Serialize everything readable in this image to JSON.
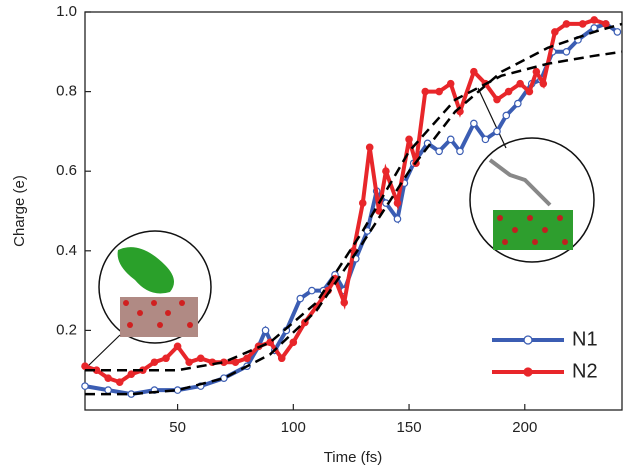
{
  "chart_data": {
    "type": "line",
    "xlabel": "Time (fs)",
    "ylabel": "Charge (e)",
    "xlim": [
      10,
      242
    ],
    "ylim": [
      0,
      1
    ],
    "xticks": [
      50,
      100,
      150,
      200
    ],
    "yticks": [
      0.2,
      0.4,
      0.6,
      0.8,
      {
        "value": 1,
        "label": "1.0"
      }
    ],
    "legend": "lower right",
    "series": [
      {
        "name": "N1",
        "color": "#3b5db3",
        "marker": "open",
        "x": [
          10,
          20,
          30,
          40,
          50,
          60,
          70,
          80,
          85,
          88,
          92,
          97,
          103,
          108,
          113,
          118,
          122,
          127,
          132,
          136,
          140,
          145,
          148,
          152,
          158,
          163,
          168,
          172,
          178,
          183,
          188,
          192,
          197,
          203,
          207,
          212,
          218,
          223,
          230,
          235,
          240
        ],
        "values": [
          0.06,
          0.05,
          0.04,
          0.05,
          0.05,
          0.06,
          0.08,
          0.11,
          0.16,
          0.2,
          0.15,
          0.2,
          0.28,
          0.3,
          0.3,
          0.34,
          0.3,
          0.38,
          0.45,
          0.55,
          0.52,
          0.48,
          0.57,
          0.62,
          0.67,
          0.65,
          0.68,
          0.65,
          0.72,
          0.68,
          0.7,
          0.74,
          0.77,
          0.82,
          0.83,
          0.9,
          0.9,
          0.93,
          0.96,
          0.97,
          0.95
        ]
      },
      {
        "name": "N2",
        "color": "#e8262a",
        "marker": "filled",
        "x": [
          10,
          15,
          20,
          25,
          30,
          35,
          40,
          45,
          50,
          55,
          60,
          65,
          70,
          75,
          80,
          85,
          90,
          95,
          100,
          105,
          110,
          115,
          118,
          122,
          126,
          130,
          133,
          137,
          140,
          145,
          150,
          153,
          157,
          163,
          168,
          172,
          178,
          183,
          188,
          193,
          198,
          202,
          205,
          208,
          213,
          218,
          225,
          230,
          235
        ],
        "values": [
          0.11,
          0.1,
          0.08,
          0.07,
          0.09,
          0.1,
          0.12,
          0.13,
          0.16,
          0.12,
          0.13,
          0.12,
          0.12,
          0.12,
          0.13,
          0.16,
          0.17,
          0.13,
          0.17,
          0.22,
          0.26,
          0.3,
          0.33,
          0.27,
          0.4,
          0.52,
          0.66,
          0.5,
          0.6,
          0.52,
          0.68,
          0.62,
          0.8,
          0.8,
          0.82,
          0.75,
          0.85,
          0.82,
          0.78,
          0.8,
          0.82,
          0.8,
          0.85,
          0.82,
          0.95,
          0.97,
          0.97,
          0.98,
          0.97
        ]
      },
      {
        "color": "#000000",
        "dashed": true,
        "x": [
          10,
          30,
          50,
          70,
          90,
          110,
          130,
          150,
          170,
          190,
          210,
          230,
          242
        ],
        "values": [
          0.1,
          0.1,
          0.1,
          0.12,
          0.17,
          0.27,
          0.45,
          0.65,
          0.78,
          0.84,
          0.87,
          0.89,
          0.9
        ]
      },
      {
        "color": "#000000",
        "dashed": true,
        "x": [
          10,
          30,
          50,
          70,
          90,
          110,
          130,
          150,
          170,
          190,
          210,
          230,
          242
        ],
        "values": [
          0.04,
          0.04,
          0.05,
          0.08,
          0.14,
          0.25,
          0.42,
          0.6,
          0.75,
          0.85,
          0.91,
          0.95,
          0.97
        ]
      }
    ]
  }
}
